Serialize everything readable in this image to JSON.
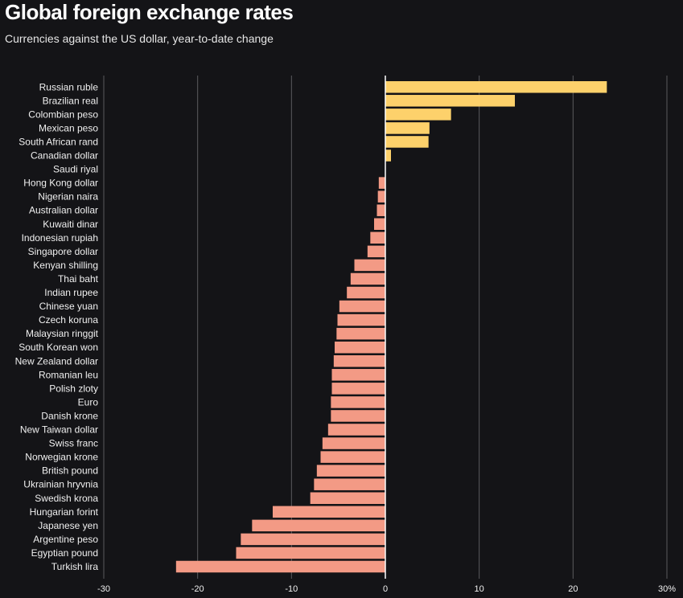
{
  "title": "Global foreign exchange rates",
  "subtitle": "Currencies against the US dollar, year-to-date change",
  "colors": {
    "background": "#141417",
    "positive": "#fdd16b",
    "negative": "#f39a85",
    "grid": "#5a5a5e",
    "zero": "#ffffff"
  },
  "chart_data": {
    "type": "bar",
    "orientation": "horizontal",
    "title": "Global foreign exchange rates",
    "subtitle": "Currencies against the US dollar, year-to-date change",
    "xlabel": "",
    "ylabel": "",
    "xlim": [
      -30,
      30
    ],
    "grid": true,
    "ticks": [
      -30,
      -20,
      -10,
      0,
      10,
      20,
      30
    ],
    "tick_labels": [
      "-30",
      "-20",
      "-10",
      "0",
      "10",
      "20",
      "30%"
    ],
    "categories": [
      "Russian ruble",
      "Brazilian real",
      "Colombian peso",
      "Mexican peso",
      "South African rand",
      "Canadian dollar",
      "Saudi riyal",
      "Hong Kong dollar",
      "Nigerian naira",
      "Australian dollar",
      "Kuwaiti dinar",
      "Indonesian rupiah",
      "Singapore dollar",
      "Kenyan shilling",
      "Thai baht",
      "Indian rupee",
      "Chinese yuan",
      "Czech koruna",
      "Malaysian ringgit",
      "South Korean won",
      "New Zealand dollar",
      "Romanian leu",
      "Polish zloty",
      "Euro",
      "Danish krone",
      "New Taiwan dollar",
      "Swiss franc",
      "Norwegian krone",
      "British pound",
      "Ukrainian hryvnia",
      "Swedish krona",
      "Hungarian forint",
      "Japanese yen",
      "Argentine peso",
      "Egyptian pound",
      "Turkish lira"
    ],
    "values": [
      23.6,
      13.8,
      7.0,
      4.7,
      4.6,
      0.6,
      0.0,
      -0.7,
      -0.8,
      -0.9,
      -1.2,
      -1.6,
      -1.9,
      -3.3,
      -3.7,
      -4.1,
      -4.9,
      -5.1,
      -5.2,
      -5.4,
      -5.5,
      -5.7,
      -5.7,
      -5.8,
      -5.8,
      -6.1,
      -6.7,
      -6.9,
      -7.3,
      -7.6,
      -8.0,
      -12.0,
      -14.2,
      -15.4,
      -15.9,
      -22.3
    ]
  }
}
